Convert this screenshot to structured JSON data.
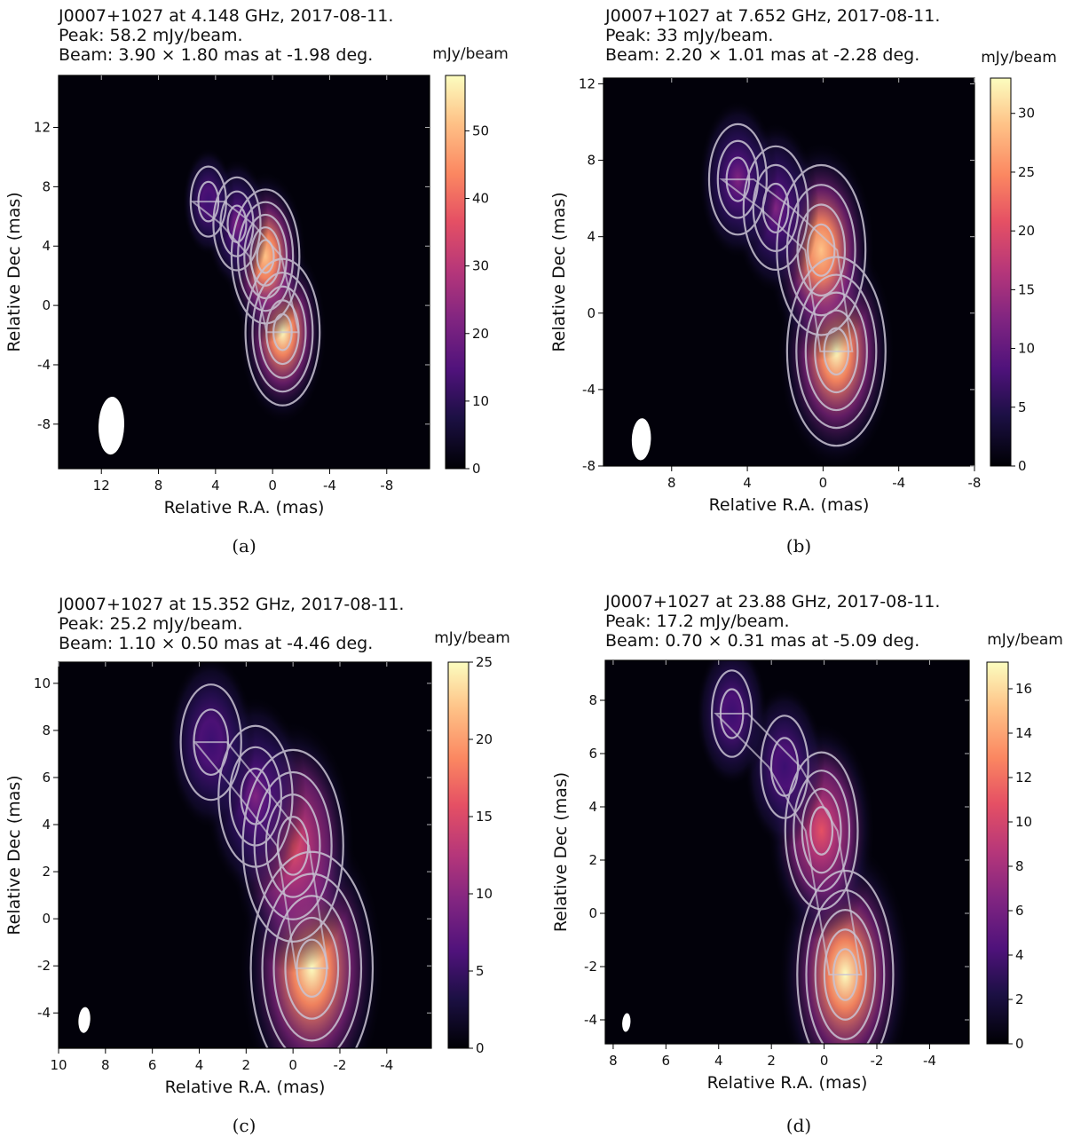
{
  "chart_data": [
    {
      "type": "heatmap",
      "panel_label": "(a)",
      "title_lines": [
        "J0007+1027 at 4.148 GHz, 2017-08-11.",
        "Peak: 58.2 mJy/beam.",
        "Beam: 3.90 × 1.80 mas at -1.98 deg."
      ],
      "xlabel": "Relative R.A. (mas)",
      "ylabel": "Relative Dec (mas)",
      "colorbar_label": "mJy/beam",
      "xlim": [
        15,
        -11
      ],
      "ylim": [
        -11,
        15.5
      ],
      "xticks": [
        12,
        8,
        4,
        0,
        -4,
        -8
      ],
      "yticks": [
        -8,
        -4,
        0,
        4,
        8,
        12
      ],
      "clim": [
        0,
        58.2
      ],
      "cticks": [
        0,
        10,
        20,
        30,
        40,
        50
      ],
      "peak": 58.2,
      "beam": {
        "major": 3.9,
        "minor": 1.8,
        "pa_deg": -1.98,
        "x": 11.3,
        "y": -8.1
      },
      "components": [
        {
          "x": -0.7,
          "y": -1.8,
          "flux": 58.2
        },
        {
          "x": 0.5,
          "y": 3.3,
          "flux": 46
        },
        {
          "x": 2.5,
          "y": 5.5,
          "flux": 16
        },
        {
          "x": 4.5,
          "y": 7.0,
          "flux": 6
        }
      ]
    },
    {
      "type": "heatmap",
      "panel_label": "(b)",
      "title_lines": [
        "J0007+1027 at 7.652 GHz, 2017-08-11.",
        "Peak: 33 mJy/beam.",
        "Beam: 2.20 × 1.01 mas at -2.28 deg."
      ],
      "xlabel": "Relative R.A. (mas)",
      "ylabel": "Relative Dec (mas)",
      "colorbar_label": "mJy/beam",
      "xlim": [
        11.6,
        -8
      ],
      "ylim": [
        -8,
        12.3
      ],
      "xticks": [
        8,
        4,
        0,
        -4,
        -8
      ],
      "yticks": [
        -8,
        -4,
        0,
        4,
        8,
        12
      ],
      "clim": [
        0,
        33
      ],
      "cticks": [
        0,
        5,
        10,
        15,
        20,
        25,
        30
      ],
      "peak": 33,
      "beam": {
        "major": 2.2,
        "minor": 1.01,
        "pa_deg": -2.28,
        "x": 9.6,
        "y": -6.6
      },
      "components": [
        {
          "x": -0.7,
          "y": -2.0,
          "flux": 33
        },
        {
          "x": 0.1,
          "y": 3.3,
          "flux": 25
        },
        {
          "x": 2.5,
          "y": 5.5,
          "flux": 10
        },
        {
          "x": 4.5,
          "y": 7.0,
          "flux": 7
        }
      ]
    },
    {
      "type": "heatmap",
      "panel_label": "(c)",
      "title_lines": [
        "J0007+1027 at 15.352 GHz, 2017-08-11.",
        "Peak: 25.2 mJy/beam.",
        "Beam: 1.10 × 0.50 mas at -4.46 deg."
      ],
      "xlabel": "Relative R.A. (mas)",
      "ylabel": "Relative Dec (mas)",
      "colorbar_label": "mJy/beam",
      "xlim": [
        10,
        -5.9
      ],
      "ylim": [
        -5.5,
        10.9
      ],
      "xticks": [
        10,
        8,
        6,
        4,
        2,
        0,
        -2,
        -4
      ],
      "yticks": [
        -4,
        -2,
        0,
        2,
        4,
        6,
        8,
        10
      ],
      "clim": [
        0,
        25
      ],
      "cticks": [
        0,
        5,
        10,
        15,
        20,
        25
      ],
      "peak": 25.2,
      "beam": {
        "major": 1.1,
        "minor": 0.5,
        "pa_deg": -4.46,
        "x": 8.9,
        "y": -4.3
      },
      "components": [
        {
          "x": -0.8,
          "y": -2.1,
          "flux": 25.2
        },
        {
          "x": 0.0,
          "y": 3.1,
          "flux": 15
        },
        {
          "x": 1.6,
          "y": 5.2,
          "flux": 6
        },
        {
          "x": 3.5,
          "y": 7.5,
          "flux": 3
        }
      ]
    },
    {
      "type": "heatmap",
      "panel_label": "(d)",
      "title_lines": [
        "J0007+1027 at 23.88 GHz, 2017-08-11.",
        "Peak: 17.2 mJy/beam.",
        "Beam: 0.70 × 0.31 mas at -5.09 deg."
      ],
      "xlabel": "Relative R.A. (mas)",
      "ylabel": "Relative Dec (mas)",
      "colorbar_label": "mJy/beam",
      "xlim": [
        8.3,
        -5.5
      ],
      "ylim": [
        -4.9,
        9.5
      ],
      "xticks": [
        8,
        6,
        4,
        2,
        0,
        -2,
        -4
      ],
      "yticks": [
        -4,
        -2,
        0,
        2,
        4,
        6,
        8
      ],
      "clim": [
        0,
        17.2
      ],
      "cticks": [
        0,
        2,
        4,
        6,
        8,
        10,
        12,
        14,
        16
      ],
      "peak": 17.2,
      "beam": {
        "major": 0.7,
        "minor": 0.31,
        "pa_deg": -5.09,
        "x": 7.5,
        "y": -4.1
      },
      "components": [
        {
          "x": -0.8,
          "y": -2.3,
          "flux": 17.2
        },
        {
          "x": 0.1,
          "y": 3.1,
          "flux": 8
        },
        {
          "x": 1.5,
          "y": 5.5,
          "flux": 2
        },
        {
          "x": 3.5,
          "y": 7.5,
          "flux": 1
        }
      ]
    }
  ]
}
